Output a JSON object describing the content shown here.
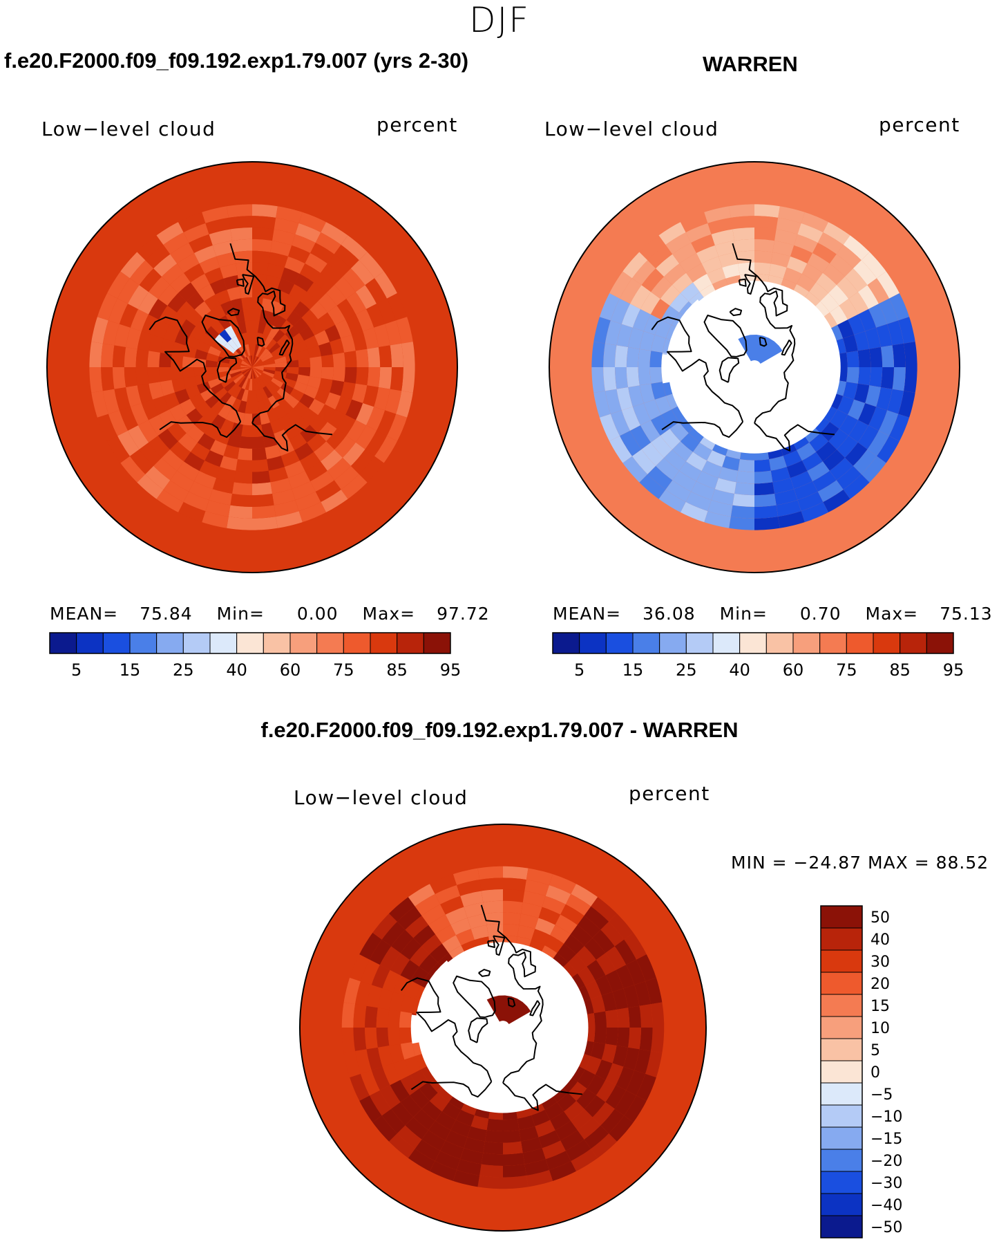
{
  "season": "DJF",
  "colors": {
    "abs_scale": [
      "#0b1a8e",
      "#0c33c3",
      "#1a4fe0",
      "#4a7fe8",
      "#86aaf0",
      "#b4cbf6",
      "#dce9fa",
      "#fbe5d5",
      "#f9c2a5",
      "#f79f7c",
      "#f47b52",
      "#ee5a2d",
      "#d9390e",
      "#b8240a",
      "#8b1207"
    ],
    "diff_scale": [
      "#0b1a8e",
      "#0c33c3",
      "#1a4fe0",
      "#4a7fe8",
      "#86aaf0",
      "#b4cbf6",
      "#dce9fa",
      "#fbe5d5",
      "#f9c2a5",
      "#f79f7c",
      "#f47b52",
      "#ee5a2d",
      "#d9390e",
      "#b8240a",
      "#8b1207"
    ],
    "coast": "#000000"
  },
  "panels": [
    {
      "title": "f.e20.F2000.f09_f09.192.exp1.79.007 (yrs 2-30)",
      "variable": "Low−level cloud",
      "units": "percent",
      "stats": {
        "mean_label": "MEAN=",
        "mean": "75.84",
        "min_label": "Min=",
        "min": "0.00",
        "max_label": "Max=",
        "max": "97.72"
      },
      "colorbar_ticks": [
        "5",
        "15",
        "25",
        "40",
        "60",
        "75",
        "85",
        "95"
      ],
      "field": "model"
    },
    {
      "title": "WARREN",
      "variable": "Low−level cloud",
      "units": "percent",
      "stats": {
        "mean_label": "MEAN=",
        "mean": "36.08",
        "min_label": "Min=",
        "min": "0.70",
        "max_label": "Max=",
        "max": "75.13"
      },
      "colorbar_ticks": [
        "5",
        "15",
        "25",
        "40",
        "60",
        "75",
        "85",
        "95"
      ],
      "field": "obs"
    },
    {
      "title": "f.e20.F2000.f09_f09.192.exp1.79.007 - WARREN",
      "variable": "Low−level cloud",
      "units": "percent",
      "stats_text": "MIN =  −24.87 MAX =   88.52",
      "colorbar_ticks": [
        "50",
        "40",
        "30",
        "20",
        "15",
        "10",
        "5",
        "0",
        "−5",
        "−10",
        "−15",
        "−20",
        "−30",
        "−40",
        "−50"
      ],
      "field": "diff"
    }
  ]
}
